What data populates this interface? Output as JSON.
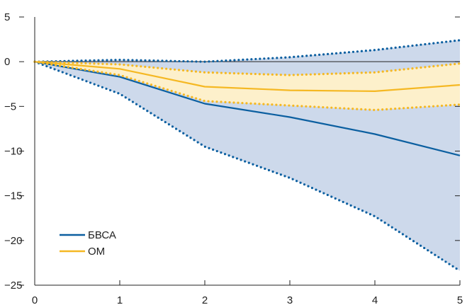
{
  "chart_data": {
    "type": "line",
    "x": [
      0,
      1,
      2,
      3,
      4,
      5
    ],
    "xlim": [
      0,
      5
    ],
    "ylim": [
      -25,
      5
    ],
    "xticks": [
      "0",
      "1",
      "2",
      "3",
      "4",
      "5"
    ],
    "yticks": [
      "5",
      "0",
      "−5",
      "−10",
      "−15",
      "−20",
      "−25"
    ],
    "ytick_values": [
      5,
      0,
      -5,
      -10,
      -15,
      -20,
      -25
    ],
    "grid": false,
    "legend_position": "bottom-left",
    "series": [
      {
        "name": "БВСА",
        "color": "#0b5fa0",
        "band_color": "#cdd9eb",
        "values": [
          0,
          -1.7,
          -4.7,
          -6.2,
          -8.1,
          -10.5
        ],
        "upper": [
          0,
          0.2,
          0,
          0.5,
          1.3,
          2.4
        ],
        "lower": [
          0,
          -3.6,
          -9.5,
          -13.0,
          -17.3,
          -23.4
        ]
      },
      {
        "name": "ОМ",
        "color": "#f5b823",
        "band_color": "#fdf0cb",
        "values": [
          0,
          -0.8,
          -2.8,
          -3.2,
          -3.3,
          -2.6
        ],
        "upper": [
          0,
          -0.3,
          -1.2,
          -1.5,
          -1.2,
          -0.2
        ],
        "lower": [
          0,
          -1.5,
          -4.4,
          -4.9,
          -5.4,
          -4.8
        ]
      }
    ],
    "zero_line": true
  }
}
